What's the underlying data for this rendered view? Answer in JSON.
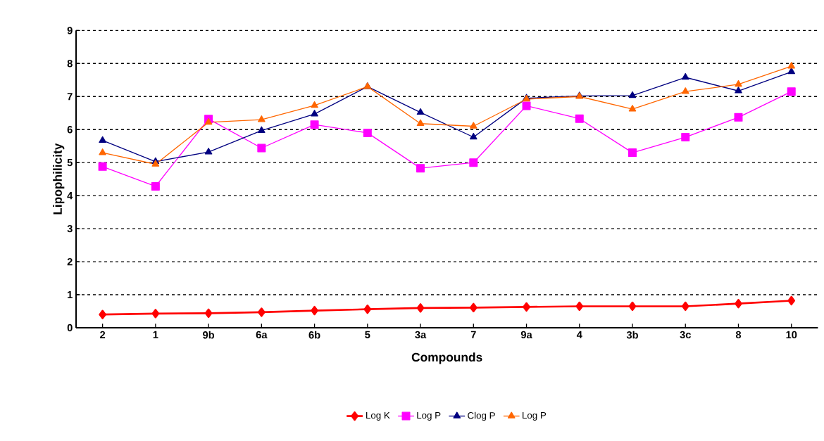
{
  "chart_data": {
    "type": "line",
    "xlabel": "Compounds",
    "ylabel": "Lipophilicity",
    "categories": [
      "2",
      "1",
      "9b",
      "6a",
      "6b",
      "5",
      "3a",
      "7",
      "9a",
      "4",
      "3b",
      "3c",
      "8",
      "10"
    ],
    "series": [
      {
        "name": "Log K",
        "color": "#ff0000",
        "marker": "diamond",
        "values": [
          0.4,
          0.43,
          0.44,
          0.47,
          0.52,
          0.56,
          0.6,
          0.61,
          0.63,
          0.65,
          0.65,
          0.65,
          0.73,
          0.82
        ]
      },
      {
        "name": "Log P",
        "color": "#ff00ff",
        "marker": "square",
        "values": [
          4.88,
          4.28,
          6.32,
          5.44,
          6.15,
          5.9,
          4.83,
          5.0,
          6.72,
          6.33,
          5.3,
          5.77,
          6.37,
          7.15
        ]
      },
      {
        "name": "Clog P",
        "color": "#000080",
        "marker": "triangle",
        "values": [
          5.67,
          5.03,
          5.32,
          5.97,
          6.47,
          7.3,
          6.52,
          5.77,
          6.95,
          7.02,
          7.03,
          7.58,
          7.17,
          7.75
        ]
      },
      {
        "name": "Log P",
        "color": "#ff6600",
        "marker": "triangle",
        "values": [
          5.3,
          4.95,
          6.22,
          6.3,
          6.73,
          7.3,
          6.18,
          6.1,
          6.92,
          7.0,
          6.62,
          7.15,
          7.37,
          7.92
        ]
      }
    ],
    "ylim": [
      0,
      9
    ],
    "yticks": [
      0,
      1,
      2,
      3,
      4,
      5,
      6,
      7,
      8,
      9
    ],
    "grid": "y",
    "legend": "bottom"
  }
}
